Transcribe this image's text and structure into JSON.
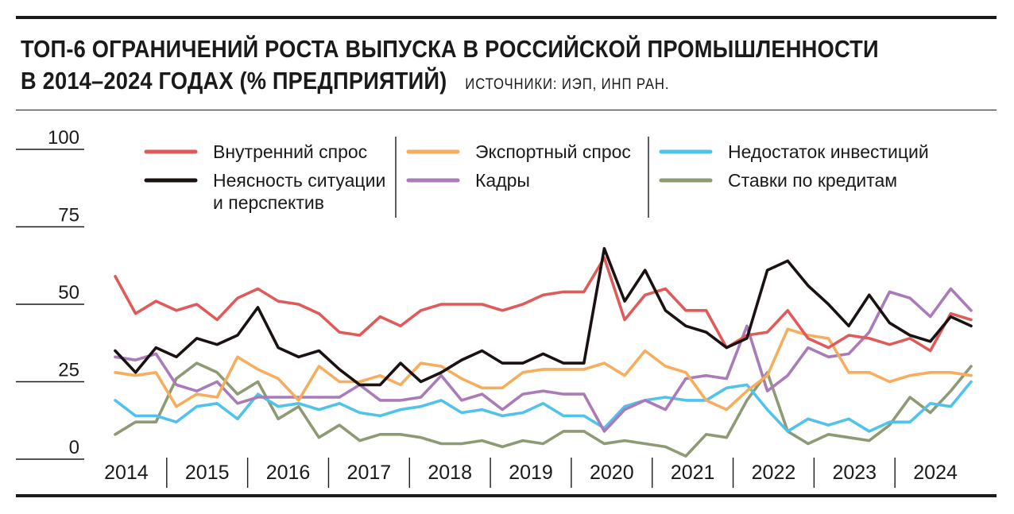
{
  "title": {
    "line1": "ТОП-6 ОГРАНИЧЕНИЙ РОСТА ВЫПУСКА В РОССИЙСКОЙ ПРОМЫШЛЕННОСТИ",
    "line2": "В 2014–2024 ГОДАХ (% ПРЕДПРИЯТИЙ)",
    "source": "ИСТОЧНИКИ: ИЭП, ИНП РАН."
  },
  "chart_data": {
    "type": "line",
    "ylim": [
      0,
      100
    ],
    "yticks": [
      "100",
      "75",
      "50",
      "25",
      "0"
    ],
    "yticks_values": [
      100,
      75,
      50,
      25,
      0
    ],
    "years": [
      "2014",
      "2015",
      "2016",
      "2017",
      "2018",
      "2019",
      "2020",
      "2021",
      "2022",
      "2023",
      "2024"
    ],
    "legend_columns": [
      [
        0,
        1
      ],
      [
        2,
        3
      ],
      [
        4,
        5
      ]
    ],
    "series": [
      {
        "name": "Внутренний спрос",
        "color": "#e05a5a",
        "values": [
          59,
          47,
          51,
          48,
          50,
          45,
          52,
          55,
          51,
          50,
          47,
          41,
          40,
          46,
          43,
          48,
          50,
          50,
          50,
          48,
          50,
          53,
          54,
          54,
          65,
          45,
          53,
          55,
          48,
          48,
          36,
          40,
          41,
          48,
          39,
          36,
          40,
          39,
          37,
          39,
          35,
          47,
          45
        ]
      },
      {
        "name": "Неясность ситуации\nи перспектив",
        "color": "#1a1111",
        "values": [
          35,
          28,
          36,
          33,
          39,
          37,
          40,
          49,
          36,
          33,
          35,
          29,
          24,
          24,
          31,
          25,
          28,
          32,
          35,
          31,
          31,
          34,
          31,
          31,
          68,
          51,
          61,
          48,
          43,
          41,
          36,
          39,
          61,
          64,
          56,
          50,
          43,
          53,
          44,
          40,
          38,
          46,
          43
        ]
      },
      {
        "name": "Экспортный спрос",
        "color": "#f6ad5d",
        "values": [
          28,
          27,
          28,
          17,
          21,
          20,
          33,
          29,
          26,
          19,
          30,
          25,
          25,
          27,
          24,
          31,
          30,
          26,
          23,
          23,
          28,
          29,
          29,
          29,
          31,
          27,
          35,
          30,
          28,
          19,
          16,
          22,
          27,
          42,
          40,
          39,
          28,
          28,
          25,
          27,
          28,
          28,
          27
        ]
      },
      {
        "name": "Кадры",
        "color": "#a97bb8",
        "values": [
          33,
          32,
          34,
          24,
          22,
          25,
          18,
          20,
          20,
          20,
          20,
          20,
          24,
          19,
          19,
          20,
          27,
          19,
          21,
          16,
          21,
          22,
          21,
          21,
          9,
          16,
          19,
          16,
          26,
          27,
          26,
          43,
          22,
          27,
          36,
          33,
          34,
          41,
          54,
          52,
          46,
          55,
          48
        ]
      },
      {
        "name": "Недостаток инвестиций",
        "color": "#4fc3ea",
        "values": [
          19,
          14,
          14,
          12,
          17,
          18,
          13,
          21,
          17,
          18,
          16,
          18,
          15,
          14,
          16,
          17,
          19,
          15,
          16,
          14,
          15,
          18,
          14,
          14,
          10,
          17,
          19,
          20,
          19,
          19,
          23,
          24,
          16,
          9,
          13,
          11,
          13,
          9,
          12,
          12,
          18,
          17,
          25
        ]
      },
      {
        "name": "Ставки по кредитам",
        "color": "#8e9a74",
        "values": [
          8,
          12,
          12,
          26,
          31,
          28,
          21,
          25,
          13,
          17,
          7,
          11,
          6,
          8,
          8,
          7,
          5,
          5,
          6,
          4,
          6,
          5,
          9,
          9,
          5,
          6,
          5,
          4,
          1,
          8,
          7,
          19,
          28,
          9,
          5,
          8,
          7,
          6,
          11,
          20,
          15,
          22,
          30
        ]
      }
    ]
  }
}
